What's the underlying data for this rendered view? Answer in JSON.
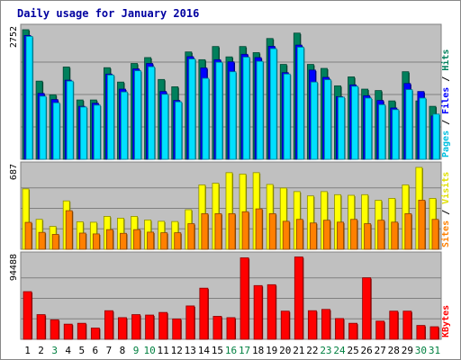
{
  "chart_data": {
    "type": "bar",
    "title": "Daily usage for January 2016",
    "categories": [
      "1",
      "2",
      "3",
      "4",
      "5",
      "6",
      "7",
      "8",
      "9",
      "10",
      "11",
      "12",
      "13",
      "14",
      "15",
      "16",
      "17",
      "18",
      "19",
      "20",
      "21",
      "22",
      "23",
      "24",
      "25",
      "26",
      "27",
      "28",
      "29",
      "30",
      "31"
    ],
    "weekend_days": [
      3,
      9,
      10,
      16,
      17,
      23,
      24,
      30,
      31
    ],
    "panels": [
      {
        "name": "hits-files-pages",
        "ylabel": [
          "Pages",
          "Files",
          "Hits"
        ],
        "ymax_label": "2752",
        "ylim": [
          0,
          2752
        ],
        "series": [
          {
            "name": "Hits",
            "color": "#00805c",
            "values": [
              2752,
              1660,
              1370,
              1960,
              1260,
              1260,
              1945,
              1640,
              2035,
              2160,
              1695,
              1540,
              2280,
              2115,
              2395,
              2175,
              2395,
              2265,
              2565,
              2015,
              2680,
              2015,
              1930,
              1560,
              1750,
              1490,
              1460,
              1240,
              1860,
              1240,
              1125
            ]
          },
          {
            "name": "Files",
            "color": "#0000ff",
            "values": [
              2630,
              1400,
              1270,
              1680,
              1125,
              1190,
              1810,
              1490,
              1920,
              2035,
              1440,
              1250,
              2180,
              1940,
              2115,
              2070,
              2230,
              2160,
              2400,
              1840,
              2425,
              1895,
              1740,
              1330,
              1580,
              1350,
              1250,
              1090,
              1610,
              1440,
              920
            ]
          },
          {
            "name": "Pages",
            "color": "#00e0ff",
            "values": [
              2610,
              1340,
              1200,
              1660,
              1110,
              1150,
              1790,
              1430,
              1880,
              1965,
              1380,
              1220,
              2130,
              1720,
              2060,
              1860,
              2170,
              2080,
              2350,
              1810,
              2380,
              1640,
              1690,
              1320,
              1550,
              1300,
              1160,
              1055,
              1480,
              1300,
              960
            ]
          }
        ]
      },
      {
        "name": "visits-sites",
        "ylabel": [
          "Sites",
          "Visits",
          ""
        ],
        "ymax_label": "687",
        "ylim": [
          0,
          687
        ],
        "series": [
          {
            "name": "Visits",
            "color": "#ffff00",
            "values": [
              507,
              251,
              192,
              406,
              231,
              227,
              276,
              261,
              276,
              246,
              235,
              233,
              332,
              540,
              554,
              643,
              631,
              643,
              544,
              514,
              484,
              448,
              484,
              458,
              453,
              458,
              411,
              427,
              540,
              687,
              427
            ]
          },
          {
            "name": "Sites",
            "color": "#ff8000",
            "values": [
              226,
              142,
              125,
              324,
              136,
              129,
              165,
              134,
              165,
              144,
              139,
              139,
              215,
              299,
              299,
              299,
              315,
              339,
              299,
              235,
              251,
              221,
              244,
              228,
              251,
              215,
              244,
              228,
              299,
              412,
              251
            ]
          }
        ]
      },
      {
        "name": "kbytes",
        "ylabel": [
          "KBytes",
          "",
          ""
        ],
        "ymax_label": "94488",
        "ylim": [
          0,
          94488
        ],
        "series": [
          {
            "name": "KBytes",
            "color": "#ff0000",
            "values": [
              55000,
              28500,
              22500,
              17500,
              18500,
              13000,
              33000,
              25000,
              28500,
              28000,
              31000,
              23500,
              38500,
              59000,
              26500,
              25000,
              94000,
              62000,
              63000,
              32500,
              95000,
              33000,
              34500,
              24000,
              18500,
              71000,
              21000,
              32500,
              32500,
              16000,
              14500
            ]
          }
        ]
      }
    ]
  }
}
